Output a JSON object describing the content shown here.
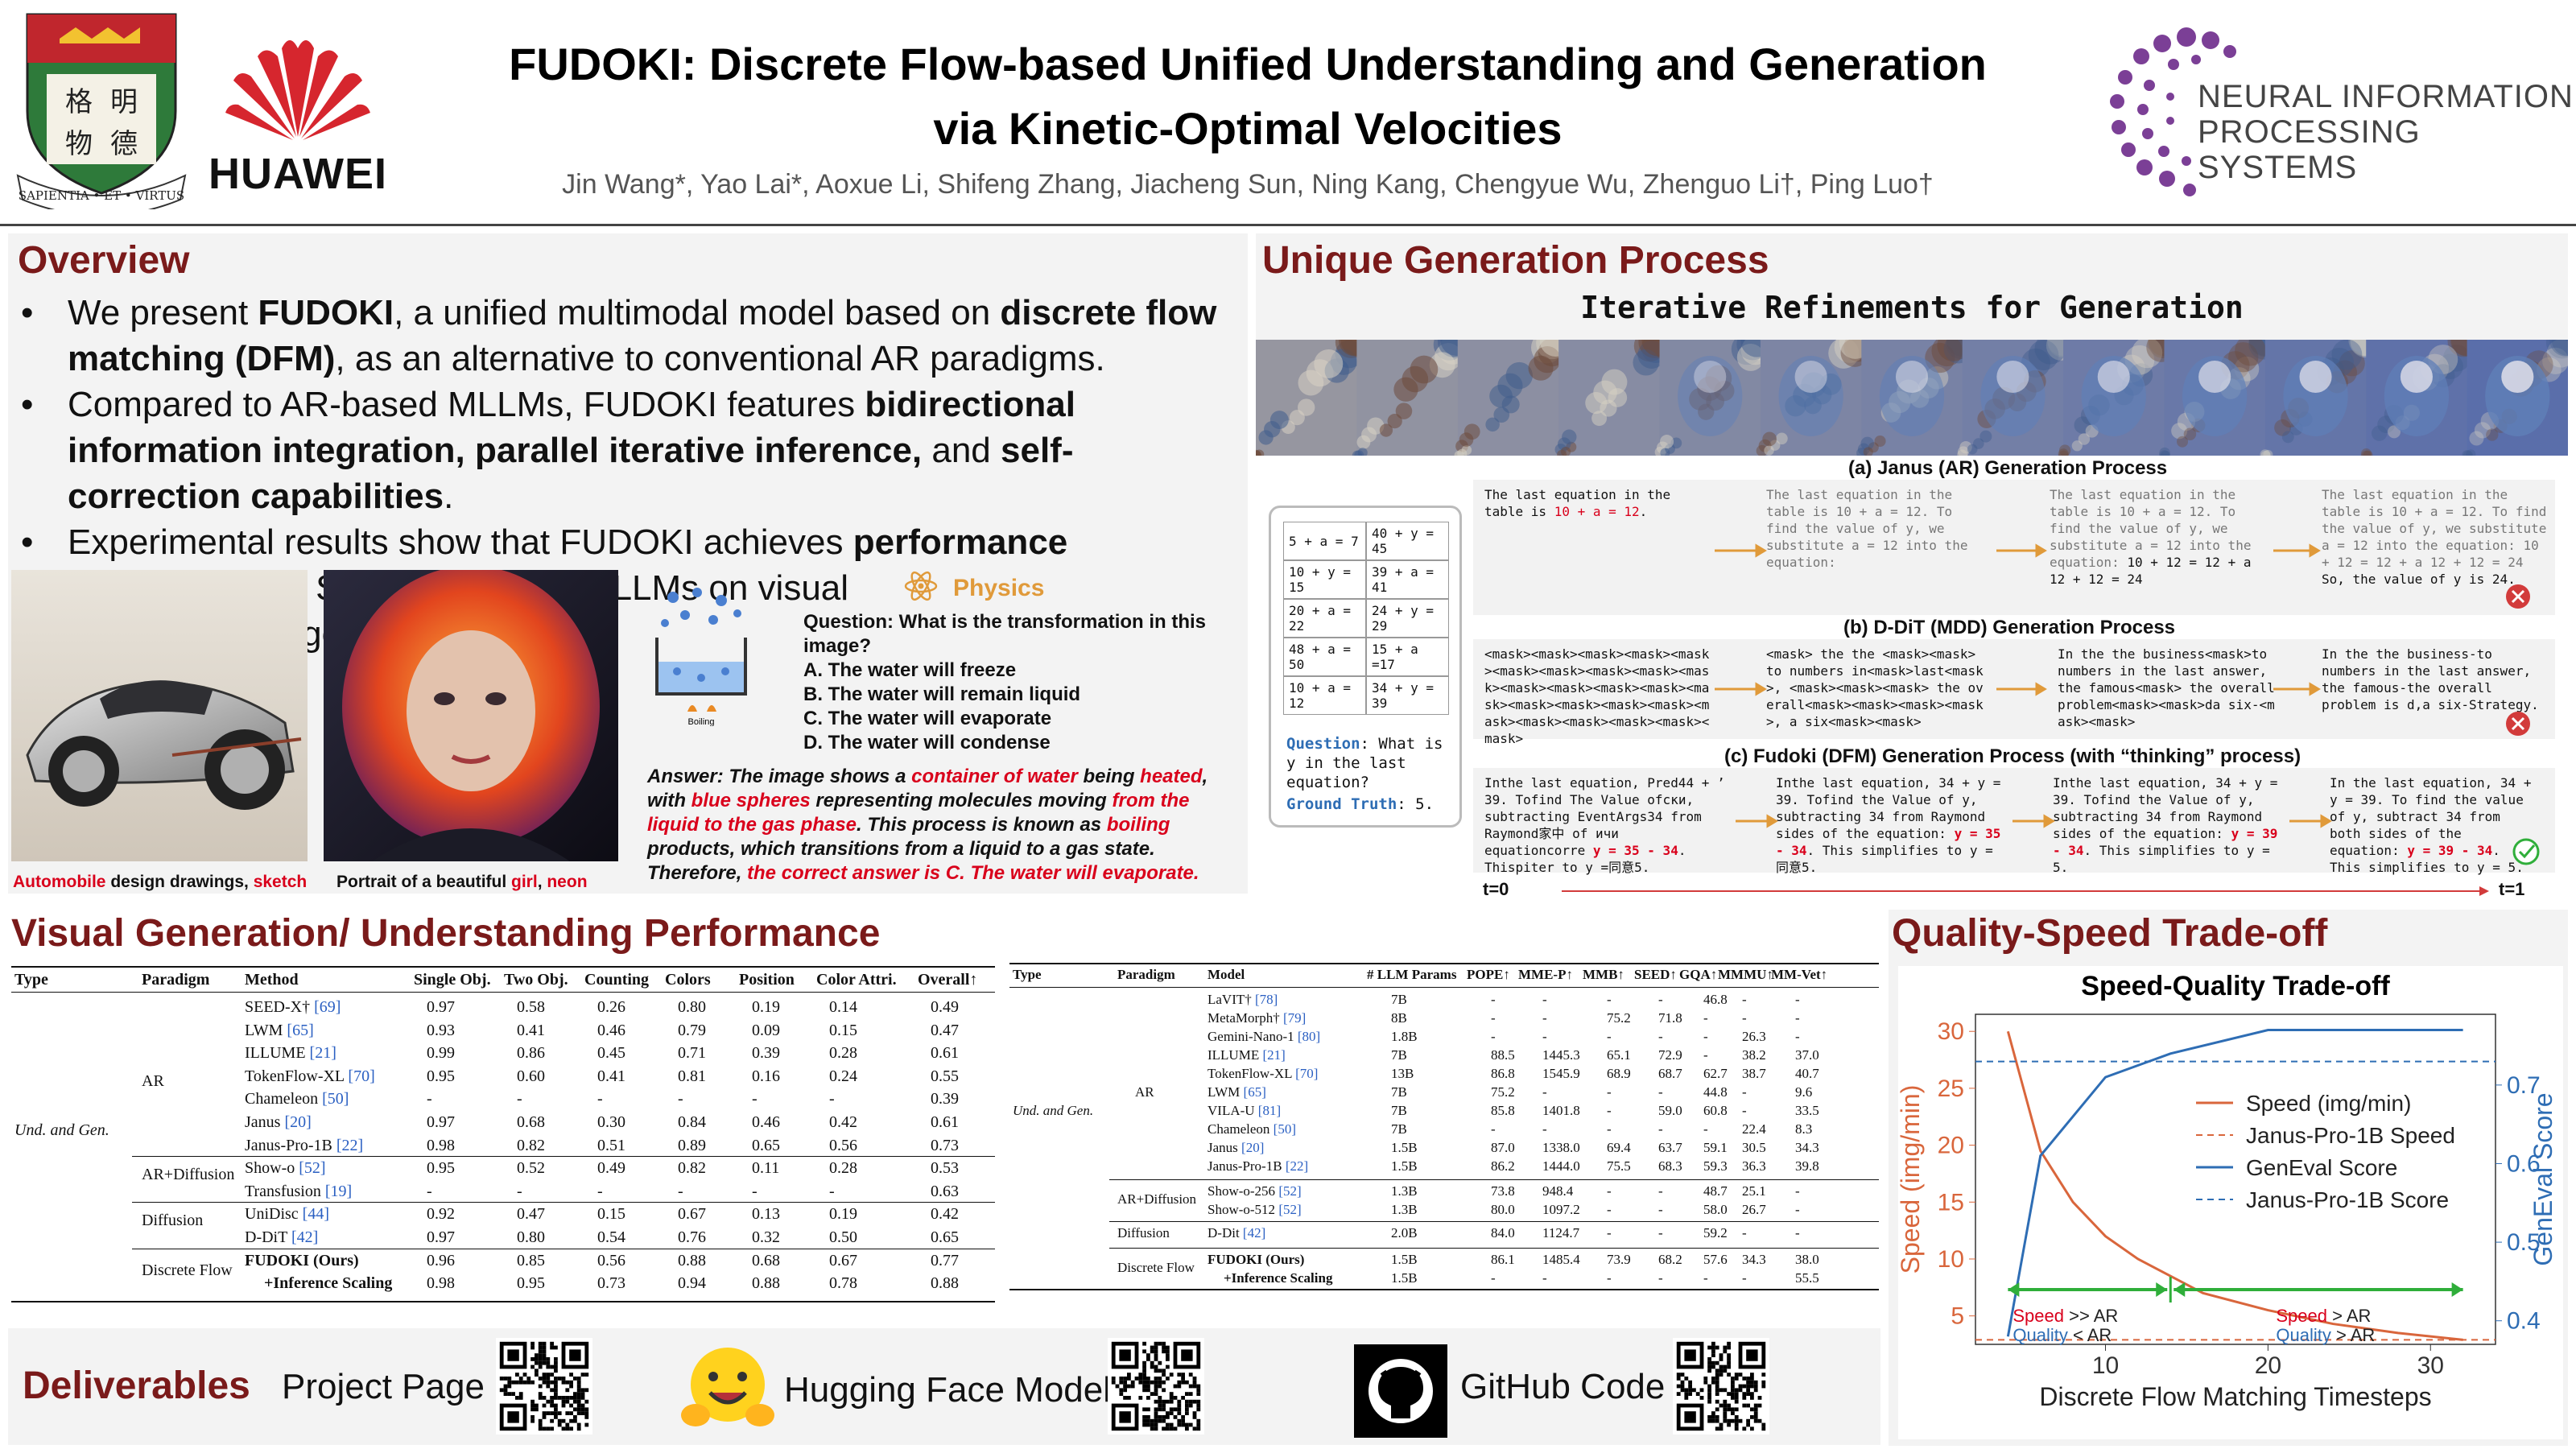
{
  "header": {
    "title_line1": "FUDOKI: Discrete Flow-based Unified Understanding and Generation",
    "title_line2": "via Kinetic-Optimal Velocities",
    "authors": "Jin Wang*, Yao Lai*, Aoxue Li, Shifeng Zhang, Jiacheng Sun, Ning Kang, Chengyue Wu, Zhenguo Li†, Ping Luo†",
    "hku_motto": "SAPIENTIA • ET • VIRTUS",
    "hku_chars": [
      "明",
      "德",
      "格",
      "物"
    ],
    "huawei": "HUAWEI",
    "neurips_line1": "NEURAL INFORMATION",
    "neurips_line2": "PROCESSING SYSTEMS"
  },
  "overview": {
    "title": "Overview",
    "b1": {
      "t1": "We present ",
      "b1": "FUDOKI",
      "t2": ", a unified multimodal model based on ",
      "b2": "discrete flow matching (DFM)",
      "t3": ", as an alternative to conventional AR paradigms."
    },
    "b2": {
      "t1": "Compared to AR-based MLLMs, FUDOKI features ",
      "b1": "bidirectional information integration, parallel iterative inference,",
      "t2": " and ",
      "b2": "self-correction capabilities",
      "t3": "."
    },
    "b3": {
      "t1": "Experimental results show that FUDOKI achieves ",
      "b1": "performance comparable",
      "t2": " to SOTA AR-based MLLMs on visual understanding/generation tasks."
    },
    "cap1": {
      "a": "Automobile",
      "b": " design drawings, ",
      "c": "sketch"
    },
    "cap2": {
      "a": "Portrait of a beautiful ",
      "b": "girl",
      "c": ", ",
      "d": "neon"
    },
    "physics_label": "Physics",
    "boiling": "Boiling",
    "question": "Question: What is the transformation in this image?",
    "options": [
      "A. The water will freeze",
      "B. The water will remain liquid",
      "C. The water will evaporate",
      "D. The water will condense"
    ],
    "answer": {
      "p1": "Answer: The image shows a ",
      "r1": "container of water",
      "p2": " being ",
      "r2": "heated",
      "p3": ", with ",
      "r3": "blue spheres",
      "p4": " representing molecules moving ",
      "r4": "from the liquid to the gas phase",
      "p5": ". This process is known as ",
      "r5": "boiling",
      "p6": " products, which transitions from a liquid to a gas state. Therefore, ",
      "r6": "the correct answer is C. The water will evaporate."
    }
  },
  "ugp": {
    "title": "Unique Generation Process",
    "subtitle": "Iterative Refinements for Generation",
    "equations": [
      [
        "5 + a = 7",
        "40 + y = 45"
      ],
      [
        "10 + y = 15",
        "39 + a = 41"
      ],
      [
        "20 + a = 22",
        "24 + y = 29"
      ],
      [
        "48 + a = 50",
        "15 + a =17"
      ],
      [
        "10 + a = 12",
        "34 + y = 39"
      ]
    ],
    "q_label": "Question",
    "q_text": ": What is y in the last equation?",
    "gt_label": "Ground Truth",
    "gt_text": ": 5.",
    "janus_label": "(a) Janus (AR) Generation Process",
    "janus": [
      {
        "t": "The last equation in the table is ",
        "r": "10 + a = 12",
        "e": "."
      },
      {
        "t": "The last equation in the table is 10 + a = 12. To find the value of y, we substitute a = 12 into the equation:"
      },
      {
        "t": "The last equation in the table is 10 + a = 12. To find the value of y, we substitute a = 12 into the equation:",
        "k": "10 + 12 = 12 + a\n12 + 12 = 24"
      },
      {
        "t": "The last equation in the table is 10 + a = 12. To find the value of y, we substitute a = 12 into the equation: 10 + 12 = 12 + a 12 + 12 = 24",
        "k": "So, the value of y is 24."
      }
    ],
    "ddit_label": "(b) D-DiT (MDD) Generation Process",
    "ddit": [
      "<mask><mask><mask><mask><mask><mask><mask><mask><mask><mask><mask><mask><mask><mask><mask><mask><mask><mask><mask><mask><mask><mask><mask><mask><mask>",
      "<mask> the the <mask><mask> to numbers in<mask>last<mask>, <mask><mask><mask> the overall<mask><mask><mask><mask>, a six<mask><mask>",
      "In the the business<mask>to numbers in the last answer, the famous<mask> the overall problem<mask><mask>da six-<mask><mask>",
      "In the the business-to numbers in the last answer, the famous-the overall problem is d,a six-Strategy."
    ],
    "fudoki_label": "(c) Fudoki (DFM) Generation Process (with “thinking” process)",
    "fudoki": [
      {
        "t": "Inthe last equation, Pred44 + ’ 39. Tofind The Value ofски, subtracting EventArgs34 from Raymond家中 of ичи equationcorre ",
        "r": "y = 35 - 34",
        "e": ". Thispiter to y =同意5."
      },
      {
        "t": "Inthe last equation, 34 + y = 39. Tofind the Value of y, subtracting 34 from Raymond sides of the equation: ",
        "r": "y = 35 - 34",
        "e": ". This simplifies to y =同意5."
      },
      {
        "t": "Inthe last equation, 34 + y = 39. Tofind the Value of y, subtracting 34 from Raymond sides of the equation: ",
        "r": "y = 39 - 34",
        "e": ". This simplifies to y = 5."
      },
      {
        "t": "In the last equation, 34 + y = 39. To find the value of y, subtract 34 from both sides of the equation: ",
        "r": "y = 39 - 34",
        "e": ". This simplifies to y = 5."
      }
    ],
    "t0": "t=0",
    "t1": "t=1"
  },
  "vgu": {
    "title": "Visual Generation/ Understanding Performance",
    "gen_headers": [
      "Type",
      "Paradigm",
      "Method",
      "Single Obj.",
      "Two Obj.",
      "Counting",
      "Colors",
      "Position",
      "Color Attri.",
      "Overall↑"
    ],
    "gen_type": "Und. and Gen.",
    "gen_rows": [
      {
        "p": "",
        "m": "SEED-X†",
        "r": "[69]",
        "v": [
          "0.97",
          "0.58",
          "0.26",
          "0.80",
          "0.19",
          "0.14",
          "0.49"
        ]
      },
      {
        "p": "",
        "m": "LWM",
        "r": "[65]",
        "v": [
          "0.93",
          "0.41",
          "0.46",
          "0.79",
          "0.09",
          "0.15",
          "0.47"
        ]
      },
      {
        "p": "",
        "m": "ILLUME",
        "r": "[21]",
        "v": [
          "0.99",
          "0.86",
          "0.45",
          "0.71",
          "0.39",
          "0.28",
          "0.61"
        ]
      },
      {
        "p": "AR",
        "m": "TokenFlow-XL",
        "r": "[70]",
        "v": [
          "0.95",
          "0.60",
          "0.41",
          "0.81",
          "0.16",
          "0.24",
          "0.55"
        ]
      },
      {
        "p": "",
        "m": "Chameleon",
        "r": "[50]",
        "v": [
          "-",
          "-",
          "-",
          "-",
          "-",
          "-",
          "0.39"
        ]
      },
      {
        "p": "",
        "m": "Janus",
        "r": "[20]",
        "v": [
          "0.97",
          "0.68",
          "0.30",
          "0.84",
          "0.46",
          "0.42",
          "0.61"
        ]
      },
      {
        "p": "",
        "m": "Janus-Pro-1B",
        "r": "[22]",
        "v": [
          "0.98",
          "0.82",
          "0.51",
          "0.89",
          "0.65",
          "0.56",
          "0.73"
        ]
      },
      {
        "p": "AR+Diffusion",
        "m": "Show-o",
        "r": "[52]",
        "v": [
          "0.95",
          "0.52",
          "0.49",
          "0.82",
          "0.11",
          "0.28",
          "0.53"
        ]
      },
      {
        "p": "",
        "m": "Transfusion",
        "r": "[19]",
        "v": [
          "-",
          "-",
          "-",
          "-",
          "-",
          "-",
          "0.63"
        ]
      },
      {
        "p": "Diffusion",
        "m": "UniDisc",
        "r": "[44]",
        "v": [
          "0.92",
          "0.47",
          "0.15",
          "0.67",
          "0.13",
          "0.19",
          "0.42"
        ]
      },
      {
        "p": "",
        "m": "D-DiT",
        "r": "[42]",
        "v": [
          "0.97",
          "0.80",
          "0.54",
          "0.76",
          "0.32",
          "0.50",
          "0.65"
        ]
      },
      {
        "p": "Discrete Flow",
        "m": "FUDOKI (Ours)",
        "r": "",
        "v": [
          "0.96",
          "0.85",
          "0.56",
          "0.88",
          "0.68",
          "0.67",
          "0.77"
        ]
      },
      {
        "p": "",
        "m": "+Inference Scaling",
        "r": "",
        "v": [
          "0.98",
          "0.95",
          "0.73",
          "0.94",
          "0.88",
          "0.78",
          "0.88"
        ]
      }
    ],
    "und_headers": [
      "Type",
      "Paradigm",
      "Model",
      "# LLM Params",
      "POPE↑",
      "MME-P↑",
      "MMB↑",
      "SEED↑",
      "GQA↑",
      "MMMU↑",
      "MM-Vet↑"
    ],
    "und_type": "Und. and Gen.",
    "und_rows": [
      {
        "p": "",
        "m": "LaVIT†",
        "r": "[78]",
        "v": [
          "7B",
          "-",
          "-",
          "-",
          "-",
          "46.8",
          "-",
          "-"
        ]
      },
      {
        "p": "",
        "m": "MetaMorph†",
        "r": "[79]",
        "v": [
          "8B",
          "-",
          "-",
          "75.2",
          "71.8",
          "-",
          "-",
          "-"
        ]
      },
      {
        "p": "",
        "m": "Gemini-Nano-1",
        "r": "[80]",
        "v": [
          "1.8B",
          "-",
          "-",
          "-",
          "-",
          "-",
          "26.3",
          "-"
        ]
      },
      {
        "p": "",
        "m": "ILLUME",
        "r": "[21]",
        "v": [
          "7B",
          "88.5",
          "1445.3",
          "65.1",
          "72.9",
          "-",
          "38.2",
          "37.0"
        ]
      },
      {
        "p": "",
        "m": "TokenFlow-XL",
        "r": "[70]",
        "v": [
          "13B",
          "86.8",
          "1545.9",
          "68.9",
          "68.7",
          "62.7",
          "38.7",
          "40.7"
        ]
      },
      {
        "p": "AR",
        "m": "LWM",
        "r": "[65]",
        "v": [
          "7B",
          "75.2",
          "-",
          "-",
          "-",
          "44.8",
          "-",
          "9.6"
        ]
      },
      {
        "p": "",
        "m": "VILA-U",
        "r": "[81]",
        "v": [
          "7B",
          "85.8",
          "1401.8",
          "-",
          "59.0",
          "60.8",
          "-",
          "33.5"
        ]
      },
      {
        "p": "",
        "m": "Chameleon",
        "r": "[50]",
        "v": [
          "7B",
          "-",
          "-",
          "-",
          "-",
          "-",
          "22.4",
          "8.3"
        ]
      },
      {
        "p": "",
        "m": "Janus",
        "r": "[20]",
        "v": [
          "1.5B",
          "87.0",
          "1338.0",
          "69.4",
          "63.7",
          "59.1",
          "30.5",
          "34.3"
        ]
      },
      {
        "p": "",
        "m": "Janus-Pro-1B",
        "r": "[22]",
        "v": [
          "1.5B",
          "86.2",
          "1444.0",
          "75.5",
          "68.3",
          "59.3",
          "36.3",
          "39.8"
        ]
      },
      {
        "p": "AR+Diffusion",
        "m": "Show-o-256",
        "r": "[52]",
        "v": [
          "1.3B",
          "73.8",
          "948.4",
          "-",
          "-",
          "48.7",
          "25.1",
          "-"
        ]
      },
      {
        "p": "",
        "m": "Show-o-512",
        "r": "[52]",
        "v": [
          "1.3B",
          "80.0",
          "1097.2",
          "-",
          "-",
          "58.0",
          "26.7",
          "-"
        ]
      },
      {
        "p": "Diffusion",
        "m": "D-Dit",
        "r": "[42]",
        "v": [
          "2.0B",
          "84.0",
          "1124.7",
          "-",
          "-",
          "59.2",
          "-",
          "-"
        ]
      },
      {
        "p": "Discrete Flow",
        "m": "FUDOKI (Ours)",
        "r": "",
        "v": [
          "1.5B",
          "86.1",
          "1485.4",
          "73.9",
          "68.2",
          "57.6",
          "34.3",
          "38.0"
        ]
      },
      {
        "p": "",
        "m": "+Inference Scaling",
        "r": "",
        "v": [
          "1.5B",
          "-",
          "-",
          "-",
          "-",
          "-",
          "-",
          "55.5"
        ]
      }
    ]
  },
  "qs": {
    "title": "Quality-Speed Trade-off",
    "chart_title": "Speed-Quality Trade-off",
    "legend": [
      "Speed (img/min)",
      "Janus-Pro-1B Speed",
      "GenEval Score",
      "Janus-Pro-1B Score"
    ],
    "ann_left": {
      "s": "Speed",
      "s2": " >> AR",
      "q": "Quality",
      "q2": " < AR"
    },
    "ann_right": {
      "s": "Speed",
      "s2": " > AR",
      "q": "Quality",
      "q2": " > AR"
    }
  },
  "deliverables": {
    "title": "Deliverables",
    "project": "Project Page",
    "hf": "Hugging Face Model",
    "github": "GitHub Code"
  },
  "colors": {
    "accent": "#7a1a1a",
    "red": "#d9001b",
    "speed": "#d9663c",
    "score": "#2e6db4",
    "green": "#2fae3a"
  },
  "chart_data": {
    "type": "line",
    "title": "Speed-Quality Trade-off",
    "xlabel": "Discrete Flow Matching Timesteps",
    "ylabel": "Speed (img/min)",
    "y2label": "GenEval Score",
    "xlim": [
      2,
      34
    ],
    "ylim": [
      2.5,
      31.5
    ],
    "y2lim": [
      0.37,
      0.79
    ],
    "xticks": [
      10,
      20,
      30
    ],
    "yticks": [
      5,
      10,
      15,
      20,
      25,
      30
    ],
    "y2ticks": [
      0.4,
      0.5,
      0.6,
      0.7
    ],
    "series": [
      {
        "name": "Speed (img/min)",
        "axis": "left",
        "style": "solid",
        "x": [
          4,
          6,
          8,
          10,
          12,
          16,
          20,
          24,
          28,
          32
        ],
        "y": [
          30,
          19.5,
          15,
          12,
          10,
          7,
          5.5,
          4.3,
          3.5,
          2.9
        ]
      },
      {
        "name": "Janus-Pro-1B Speed",
        "axis": "left",
        "style": "dashed",
        "x": [
          2,
          34
        ],
        "y": [
          2.9,
          2.9
        ]
      },
      {
        "name": "GenEval Score",
        "axis": "right",
        "style": "solid",
        "x": [
          4,
          6,
          10,
          14,
          20,
          24,
          28,
          32
        ],
        "y": [
          0.38,
          0.61,
          0.71,
          0.74,
          0.77,
          0.77,
          0.77,
          0.77
        ]
      },
      {
        "name": "Janus-Pro-1B Score",
        "axis": "right",
        "style": "dashed",
        "x": [
          2,
          34
        ],
        "y": [
          0.73,
          0.73
        ]
      }
    ]
  }
}
